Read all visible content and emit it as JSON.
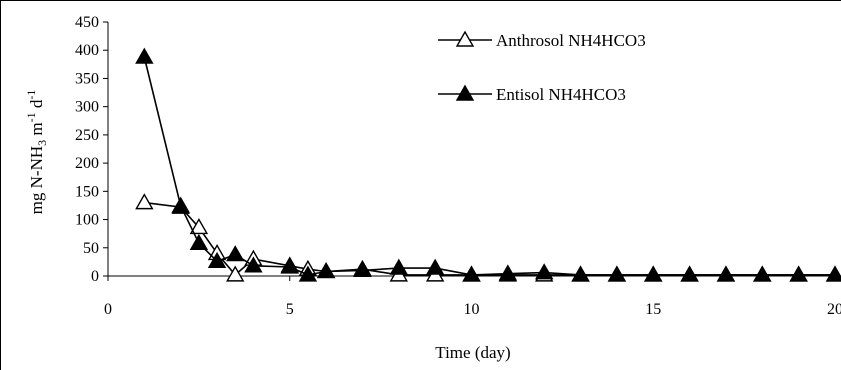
{
  "chart_data": {
    "type": "line",
    "xlabel": "Time (day)",
    "ylabel_parts": {
      "prefix": "mg N-NH",
      "sub": "3",
      "mid": " m",
      "sup1": "-1",
      "mid2": " d",
      "sup2": "-1"
    },
    "xlim": [
      0,
      20
    ],
    "ylim": [
      0,
      450
    ],
    "x_ticks": [
      "0",
      "5",
      "10",
      "15",
      "20"
    ],
    "y_ticks": [
      "0",
      "50",
      "100",
      "150",
      "200",
      "250",
      "300",
      "350",
      "400",
      "450"
    ],
    "grid": false,
    "legend_position": "top-right",
    "series": [
      {
        "name": "Anthrosol NH4HCO3",
        "marker": "open-triangle",
        "color": "#000000",
        "x": [
          1,
          2,
          2.5,
          3,
          3.5,
          4,
          5,
          5.5,
          6,
          7,
          8,
          9,
          10,
          11,
          12,
          13,
          14,
          15,
          16,
          17,
          18,
          19,
          20
        ],
        "y": [
          130,
          122,
          86,
          40,
          2,
          30,
          18,
          12,
          8,
          12,
          2,
          2,
          2,
          2,
          2,
          2,
          2,
          2,
          2,
          2,
          2,
          2,
          2
        ]
      },
      {
        "name": "Entisol NH4HCO3",
        "marker": "filled-triangle",
        "color": "#000000",
        "x": [
          1,
          2,
          2.5,
          3,
          3.5,
          4,
          5,
          5.5,
          6,
          7,
          8,
          9,
          10,
          11,
          12,
          13,
          14,
          15,
          16,
          17,
          18,
          19,
          20
        ],
        "y": [
          388,
          124,
          58,
          26,
          38,
          18,
          16,
          2,
          8,
          10,
          14,
          14,
          2,
          4,
          6,
          2,
          2,
          2,
          2,
          2,
          2,
          2,
          2
        ]
      }
    ]
  }
}
